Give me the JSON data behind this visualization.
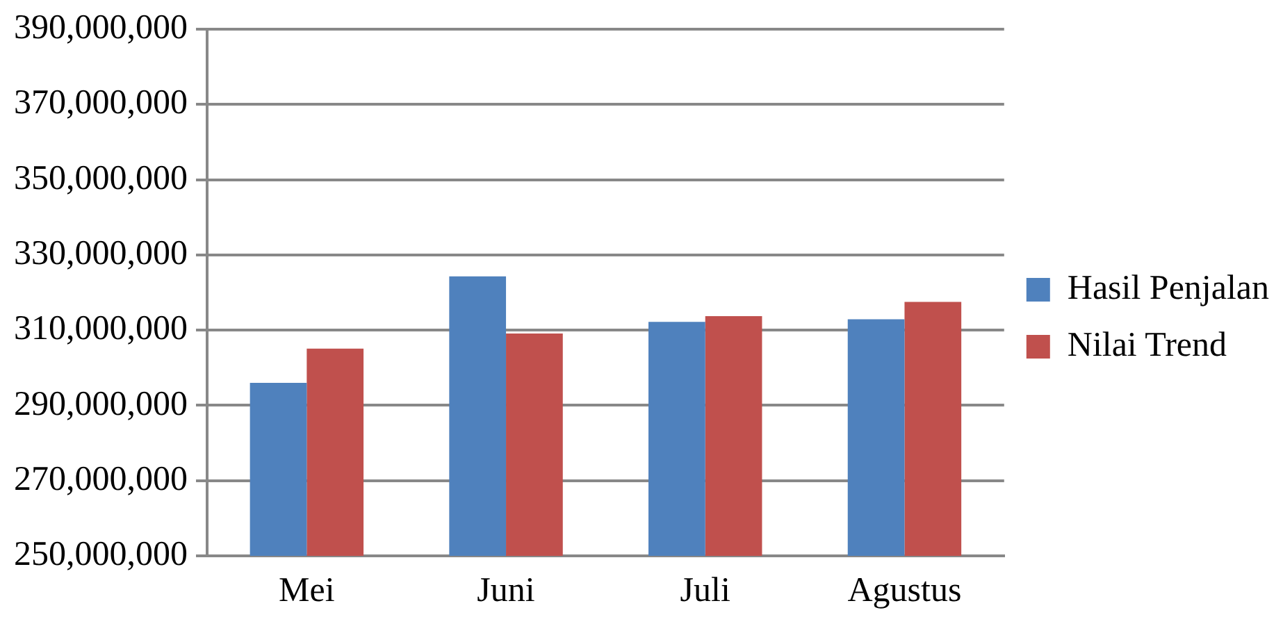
{
  "chart_data": {
    "type": "bar",
    "categories": [
      "Mei",
      "Juni",
      "Juli",
      "Agustus"
    ],
    "series": [
      {
        "name": "Hasil Penjalan",
        "color": "#4f81bd",
        "values": [
          296000000,
          324300000,
          312200000,
          312900000
        ]
      },
      {
        "name": "Nilai Trend",
        "color": "#c0504d",
        "values": [
          305100000,
          309100000,
          313700000,
          317500000
        ]
      }
    ],
    "ylim": [
      250000000,
      390000000
    ],
    "yticks": [
      {
        "value": 250000000,
        "label": "250,000,000"
      },
      {
        "value": 270000000,
        "label": "270,000,000"
      },
      {
        "value": 290000000,
        "label": "290,000,000"
      },
      {
        "value": 310000000,
        "label": "310,000,000"
      },
      {
        "value": 330000000,
        "label": "330,000,000"
      },
      {
        "value": 350000000,
        "label": "350,000,000"
      },
      {
        "value": 370000000,
        "label": "370,000,000"
      },
      {
        "value": 390000000,
        "label": "390,000,000"
      }
    ],
    "grid": "y",
    "legend": "right"
  }
}
